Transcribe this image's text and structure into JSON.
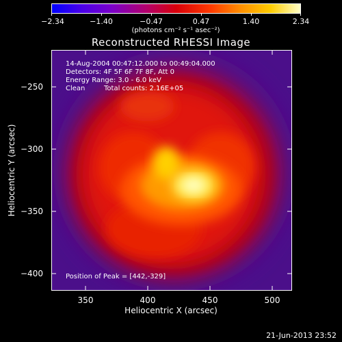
{
  "colorbar": {
    "ticks": [
      "−2.34",
      "−1.40",
      "−0.47",
      "0.47",
      "1.40",
      "2.34"
    ],
    "units": "(photons cm⁻² s⁻¹ asec⁻²)",
    "range": [
      -2.34,
      2.34
    ]
  },
  "plot": {
    "title": "Reconstructed RHESSI Image",
    "xlabel": "Heliocentric X (arcsec)",
    "ylabel": "Heliocentric Y (arcsec)",
    "xticks": [
      "350",
      "400",
      "450",
      "500"
    ],
    "yticks": [
      "−250",
      "−300",
      "−350",
      "−400"
    ],
    "xlim": [
      322,
      515
    ],
    "ylim": [
      -415,
      -222
    ]
  },
  "info": {
    "time": "14-Aug-2004 00:47:12.000 to 00:49:04.000",
    "detectors": "Detectors: 4F 5F 6F 7F 8F, Att 0",
    "energy": "Energy Range: 3.0 - 6.0 keV",
    "method": "Clean",
    "counts": "Total counts: 2.16E+05",
    "peak": "Position of Peak = [442,-329]"
  },
  "peak": {
    "x": 442,
    "y": -329
  },
  "timestamp": "21-Jun-2013 23:52",
  "colors": {
    "background": "#000000",
    "frame": "#ffffff",
    "outer_region": "#4b0f8a",
    "core": "#ffffc8"
  }
}
